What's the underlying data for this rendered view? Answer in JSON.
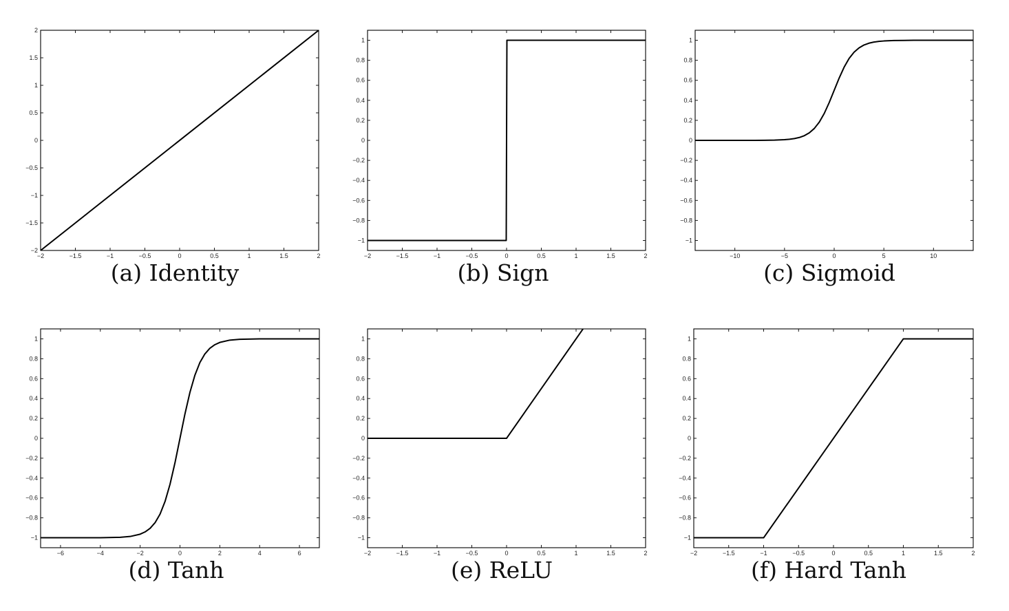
{
  "chart_data": [
    {
      "type": "line",
      "caption": "(a) Identity",
      "xlim": [
        -2,
        2
      ],
      "ylim": [
        -2,
        2
      ],
      "xticks": [
        -2,
        -1.5,
        -1,
        -0.5,
        0,
        0.5,
        1,
        1.5,
        2
      ],
      "yticks": [
        -2,
        -1.5,
        -1,
        -0.5,
        0,
        0.5,
        1,
        1.5,
        2
      ],
      "xtick_labels": [
        "−2",
        "−1.5",
        "−1",
        "−0.5",
        "0",
        "0.5",
        "1",
        "1.5",
        "2"
      ],
      "ytick_labels": [
        "−2",
        "−1.5",
        "−1",
        "−0.5",
        "0",
        "0.5",
        "1",
        "1.5",
        "2"
      ],
      "series": [
        {
          "x": [
            -2,
            2
          ],
          "y": [
            -2,
            2
          ]
        }
      ]
    },
    {
      "type": "line",
      "caption": "(b) Sign",
      "xlim": [
        -2,
        2
      ],
      "ylim": [
        -1.1,
        1.1
      ],
      "xticks": [
        -2,
        -1.5,
        -1,
        -0.5,
        0,
        0.5,
        1,
        1.5,
        2
      ],
      "yticks": [
        -1,
        -0.8,
        -0.6,
        -0.4,
        -0.2,
        0,
        0.2,
        0.4,
        0.6,
        0.8,
        1
      ],
      "xtick_labels": [
        "−2",
        "−1.5",
        "−1",
        "−0.5",
        "0",
        "0.5",
        "1",
        "1.5",
        "2"
      ],
      "ytick_labels": [
        "−1",
        "−0.8",
        "−0.6",
        "−0.4",
        "−0.2",
        "0",
        "0.2",
        "0.4",
        "0.6",
        "0.8",
        "1"
      ],
      "series": [
        {
          "x": [
            -2,
            -0.005,
            0.005,
            2
          ],
          "y": [
            -1,
            -1,
            1,
            1
          ]
        }
      ]
    },
    {
      "type": "line",
      "caption": "(c) Sigmoid",
      "xlim": [
        -14,
        14
      ],
      "ylim": [
        -1.1,
        1.1
      ],
      "xticks": [
        -10,
        -5,
        0,
        5,
        10
      ],
      "yticks": [
        -1,
        -0.8,
        -0.6,
        -0.4,
        -0.2,
        0,
        0.2,
        0.4,
        0.6,
        0.8,
        1
      ],
      "xtick_labels": [
        "−10",
        "−5",
        "0",
        "5",
        "10"
      ],
      "ytick_labels": [
        "−1",
        "−0.8",
        "−0.6",
        "−0.4",
        "−0.2",
        "0",
        "0.2",
        "0.4",
        "0.6",
        "0.8",
        "1"
      ],
      "series": [
        {
          "x": [
            -14,
            -12,
            -10,
            -8,
            -7,
            -6,
            -5,
            -4.5,
            -4,
            -3.5,
            -3,
            -2.5,
            -2,
            -1.5,
            -1,
            -0.5,
            0,
            0.5,
            1,
            1.5,
            2,
            2.5,
            3,
            3.5,
            4,
            4.5,
            5,
            6,
            7,
            8,
            10,
            12,
            14
          ],
          "y": [
            0,
            0,
            0,
            0.0003,
            0.0009,
            0.0025,
            0.0067,
            0.011,
            0.018,
            0.029,
            0.047,
            0.076,
            0.119,
            0.182,
            0.269,
            0.378,
            0.5,
            0.622,
            0.731,
            0.818,
            0.881,
            0.924,
            0.953,
            0.971,
            0.982,
            0.989,
            0.993,
            0.998,
            0.999,
            1,
            1,
            1,
            1
          ]
        }
      ]
    },
    {
      "type": "line",
      "caption": "(d) Tanh",
      "xlim": [
        -7,
        7
      ],
      "ylim": [
        -1.1,
        1.1
      ],
      "xticks": [
        -6,
        -4,
        -2,
        0,
        2,
        4,
        6
      ],
      "yticks": [
        -1,
        -0.8,
        -0.6,
        -0.4,
        -0.2,
        0,
        0.2,
        0.4,
        0.6,
        0.8,
        1
      ],
      "xtick_labels": [
        "−6",
        "−4",
        "−2",
        "0",
        "2",
        "4",
        "6"
      ],
      "ytick_labels": [
        "−1",
        "−0.8",
        "−0.6",
        "−0.4",
        "−0.2",
        "0",
        "0.2",
        "0.4",
        "0.6",
        "0.8",
        "1"
      ],
      "series": [
        {
          "x": [
            -7,
            -5,
            -4,
            -3,
            -2.5,
            -2,
            -1.75,
            -1.5,
            -1.25,
            -1,
            -0.75,
            -0.5,
            -0.25,
            0,
            0.25,
            0.5,
            0.75,
            1,
            1.25,
            1.5,
            1.75,
            2,
            2.5,
            3,
            4,
            5,
            7
          ],
          "y": [
            -1,
            -0.9999,
            -0.9993,
            -0.995,
            -0.987,
            -0.964,
            -0.941,
            -0.905,
            -0.848,
            -0.762,
            -0.635,
            -0.462,
            -0.245,
            0,
            0.245,
            0.462,
            0.635,
            0.762,
            0.848,
            0.905,
            0.941,
            0.964,
            0.987,
            0.995,
            0.9993,
            0.9999,
            1
          ]
        }
      ]
    },
    {
      "type": "line",
      "caption": "(e) ReLU",
      "xlim": [
        -2,
        2
      ],
      "ylim": [
        -1.1,
        1.1
      ],
      "xticks": [
        -2,
        -1.5,
        -1,
        -0.5,
        0,
        0.5,
        1,
        1.5,
        2
      ],
      "yticks": [
        -1,
        -0.8,
        -0.6,
        -0.4,
        -0.2,
        0,
        0.2,
        0.4,
        0.6,
        0.8,
        1
      ],
      "xtick_labels": [
        "−2",
        "−1.5",
        "−1",
        "−0.5",
        "0",
        "0.5",
        "1",
        "1.5",
        "2"
      ],
      "ytick_labels": [
        "−1",
        "−0.8",
        "−0.6",
        "−0.4",
        "−0.2",
        "0",
        "0.2",
        "0.4",
        "0.6",
        "0.8",
        "1"
      ],
      "series": [
        {
          "x": [
            -2,
            0,
            1.1
          ],
          "y": [
            0,
            0,
            1.1
          ]
        }
      ]
    },
    {
      "type": "line",
      "caption": "(f) Hard Tanh",
      "xlim": [
        -2,
        2
      ],
      "ylim": [
        -1.1,
        1.1
      ],
      "xticks": [
        -2,
        -1.5,
        -1,
        -0.5,
        0,
        0.5,
        1,
        1.5,
        2
      ],
      "yticks": [
        -1,
        -0.8,
        -0.6,
        -0.4,
        -0.2,
        0,
        0.2,
        0.4,
        0.6,
        0.8,
        1
      ],
      "xtick_labels": [
        "−2",
        "−1.5",
        "−1",
        "−0.5",
        "0",
        "0.5",
        "1",
        "1.5",
        "2"
      ],
      "ytick_labels": [
        "−1",
        "−0.8",
        "−0.6",
        "−0.4",
        "−0.2",
        "0",
        "0.2",
        "0.4",
        "0.6",
        "0.8",
        "1"
      ],
      "series": [
        {
          "x": [
            -2,
            -1,
            1,
            2
          ],
          "y": [
            -1,
            -1,
            1,
            1
          ]
        }
      ]
    }
  ]
}
